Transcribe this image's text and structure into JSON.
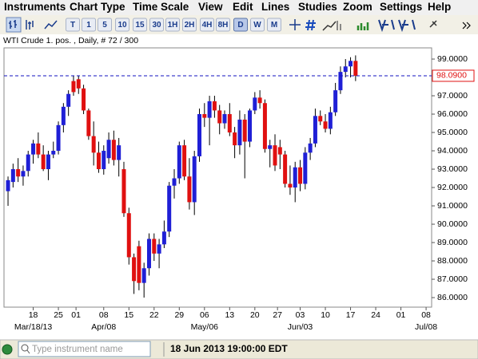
{
  "menu": [
    "Instruments",
    "Chart Type",
    "Time Scale",
    "View",
    "Edit",
    "Lines",
    "Studies",
    "Zoom",
    "Settings",
    "Help"
  ],
  "toolbar": [
    "T",
    "1",
    "5",
    "10",
    "15",
    "30",
    "1H",
    "2H",
    "4H",
    "8H",
    "D",
    "W",
    "M"
  ],
  "toolbar_active": "D",
  "chart_data": {
    "type": "candlestick",
    "title": "WTI Crude 1. pos. , Daily, # 72 / 300",
    "open": [
      91.8,
      92.3,
      93.0,
      92.6,
      92.9,
      93.8,
      94.4,
      93.8,
      93.0,
      93.8,
      94.0,
      95.4,
      96.4,
      97.8,
      97.9,
      97.4,
      96.2,
      94.8,
      93.9,
      93.0,
      93.6,
      94.6,
      93.5,
      93.0,
      90.6,
      88.2,
      88.8,
      86.8,
      87.6,
      89.2,
      88.4,
      88.9,
      89.6,
      92.1,
      92.5,
      94.3,
      92.6,
      91.2,
      93.7,
      96.0,
      95.8,
      96.7,
      96.2,
      95.5,
      96.0,
      95.0,
      94.3,
      95.7,
      94.5,
      96.2,
      96.9,
      96.6,
      94.1,
      94.3,
      94.2,
      93.8,
      92.2,
      92.0,
      93.1,
      92.2,
      93.9,
      94.4,
      95.9,
      95.6,
      95.2,
      96.1,
      97.3,
      98.3,
      98.6,
      98.9
    ],
    "high": [
      92.6,
      93.3,
      93.6,
      93.2,
      94.0,
      94.6,
      95.0,
      94.3,
      94.0,
      94.5,
      95.6,
      96.6,
      97.3,
      98.1,
      98.1,
      97.6,
      96.3,
      95.6,
      94.5,
      94.3,
      95.0,
      95.1,
      94.7,
      93.4,
      90.9,
      88.4,
      89.1,
      87.9,
      89.5,
      89.5,
      89.2,
      90.2,
      92.3,
      93.0,
      94.5,
      94.6,
      93.6,
      94.0,
      96.3,
      96.6,
      97.0,
      97.0,
      96.5,
      96.2,
      96.6,
      95.3,
      96.2,
      96.0,
      96.3,
      97.2,
      97.3,
      96.8,
      94.6,
      94.9,
      94.6,
      94.0,
      93.2,
      93.4,
      93.5,
      94.2,
      94.7,
      96.3,
      96.2,
      96.0,
      96.4,
      97.7,
      98.6,
      99.0,
      99.1,
      99.2
    ],
    "low": [
      91.0,
      92.0,
      92.3,
      92.1,
      92.6,
      93.3,
      93.6,
      92.9,
      92.4,
      93.6,
      93.8,
      95.0,
      95.9,
      97.0,
      97.1,
      96.0,
      94.6,
      93.2,
      92.8,
      92.7,
      93.3,
      93.2,
      92.6,
      90.4,
      87.8,
      86.2,
      86.4,
      86.0,
      87.2,
      88.0,
      87.6,
      88.7,
      89.3,
      91.4,
      92.2,
      92.4,
      90.8,
      90.5,
      93.4,
      95.3,
      94.3,
      95.8,
      94.9,
      95.2,
      94.8,
      93.6,
      93.8,
      92.5,
      94.2,
      96.0,
      96.3,
      93.9,
      93.1,
      92.9,
      93.0,
      92.0,
      91.6,
      91.2,
      91.8,
      91.9,
      93.5,
      94.2,
      95.4,
      95.0,
      94.9,
      95.9,
      97.1,
      98.0,
      98.0,
      97.8
    ],
    "close": [
      92.4,
      93.0,
      92.6,
      92.9,
      93.8,
      94.4,
      93.8,
      93.0,
      93.8,
      94.0,
      95.4,
      96.4,
      97.1,
      97.2,
      97.4,
      96.2,
      94.8,
      93.9,
      93.0,
      94.0,
      94.6,
      93.5,
      94.3,
      90.6,
      88.2,
      86.9,
      86.8,
      87.6,
      89.2,
      88.4,
      88.9,
      89.6,
      92.1,
      92.5,
      94.3,
      92.6,
      91.2,
      93.7,
      96.0,
      95.8,
      96.7,
      96.2,
      95.5,
      96.0,
      95.0,
      94.3,
      95.7,
      94.5,
      96.2,
      96.9,
      96.6,
      94.1,
      94.3,
      93.2,
      93.8,
      92.2,
      92.0,
      93.1,
      92.2,
      93.9,
      94.4,
      95.9,
      95.6,
      95.2,
      96.1,
      97.3,
      98.3,
      98.6,
      98.9,
      98.09
    ],
    "up_color": "#1f1fd6",
    "down_color": "#e01010",
    "ylim": [
      85.48,
      99.61
    ],
    "yticks": [
      {
        "value": 99,
        "label": "99.0000"
      },
      {
        "value": 97,
        "label": "97.0000"
      },
      {
        "value": 96,
        "label": "96.0000"
      },
      {
        "value": 95,
        "label": "95.0000"
      },
      {
        "value": 94,
        "label": "94.0000"
      },
      {
        "value": 93,
        "label": "93.0000"
      },
      {
        "value": 92,
        "label": "92.0000"
      },
      {
        "value": 91,
        "label": "91.0000"
      },
      {
        "value": 90,
        "label": "90.0000"
      },
      {
        "value": 89,
        "label": "89.0000"
      },
      {
        "value": 88,
        "label": "88.0000"
      },
      {
        "value": 87,
        "label": "87.0000"
      },
      {
        "value": 86,
        "label": "86.0000"
      }
    ],
    "last_price": {
      "value": 98.09,
      "label": "98.0900"
    },
    "last_price_color": "#1010c0",
    "xlim": [
      -0.8,
      84.1
    ],
    "xticks": [
      {
        "value": 5,
        "label": "18"
      },
      {
        "value": 10,
        "label": "25"
      },
      {
        "value": 13.5,
        "label": "01"
      },
      {
        "value": 19,
        "label": "08"
      },
      {
        "value": 24,
        "label": "15"
      },
      {
        "value": 29,
        "label": "22"
      },
      {
        "value": 34,
        "label": "29"
      },
      {
        "value": 39,
        "label": "06"
      },
      {
        "value": 44,
        "label": "13"
      },
      {
        "value": 49,
        "label": "20"
      },
      {
        "value": 53.5,
        "label": "27"
      },
      {
        "value": 58,
        "label": "03"
      },
      {
        "value": 63,
        "label": "10"
      },
      {
        "value": 68,
        "label": "17"
      },
      {
        "value": 73,
        "label": "24"
      },
      {
        "value": 78,
        "label": "01"
      },
      {
        "value": 83,
        "label": "08"
      }
    ],
    "xticks_major": [
      {
        "value": 5,
        "label": "Mar/18/13"
      },
      {
        "value": 19,
        "label": "Apr/08"
      },
      {
        "value": 39,
        "label": "May/06"
      },
      {
        "value": 58,
        "label": "Jun/03"
      },
      {
        "value": 83,
        "label": "Jul/08"
      }
    ]
  },
  "status": {
    "search_placeholder": "Type instrument name",
    "datetime": "18 Jun 2013 19:00:00 EDT"
  }
}
